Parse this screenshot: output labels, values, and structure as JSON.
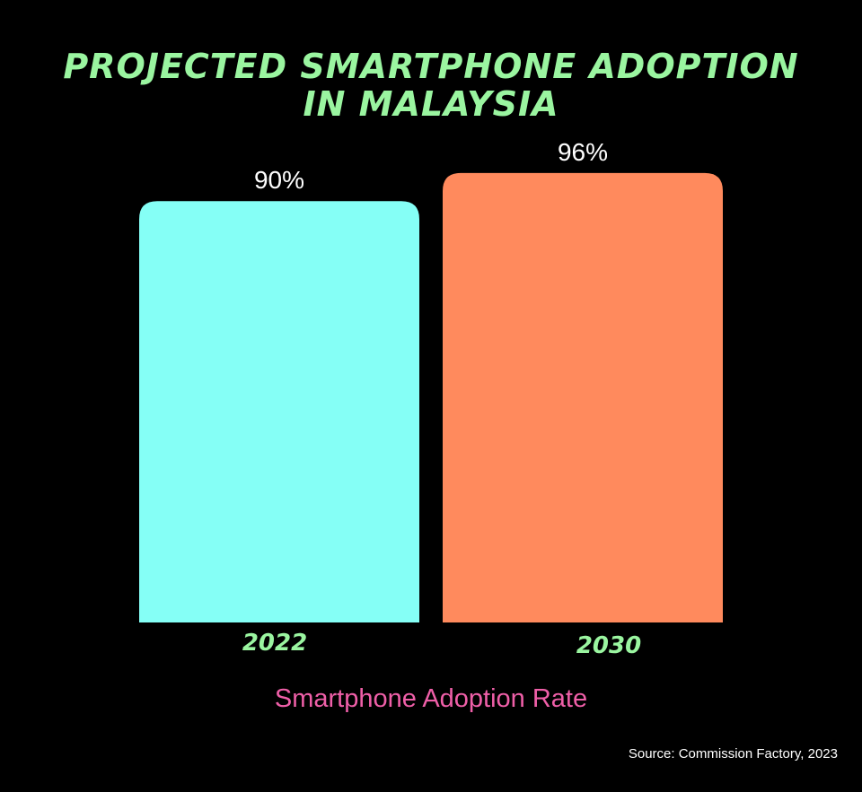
{
  "colors": {
    "background": "#000000",
    "title": "#9af5a0",
    "category_label": "#9af5a0",
    "value_label": "#ffffff",
    "xlabel": "#ef5fa8",
    "bar_2022": "#85fff6",
    "bar_2030": "#ff8a5d"
  },
  "chart_data": {
    "type": "bar",
    "title_lines": [
      "PROJECTED SMARTPHONE ADOPTION",
      "IN MALAYSIA"
    ],
    "categories": [
      "2022",
      "2030"
    ],
    "values": [
      90,
      96
    ],
    "value_labels": [
      "90%",
      "96%"
    ],
    "xlabel": "Smartphone Adoption Rate",
    "ylabel": "",
    "ylim": [
      0,
      100
    ],
    "grid": false,
    "legend": "none"
  },
  "source": "Source: Commission Factory, 2023"
}
